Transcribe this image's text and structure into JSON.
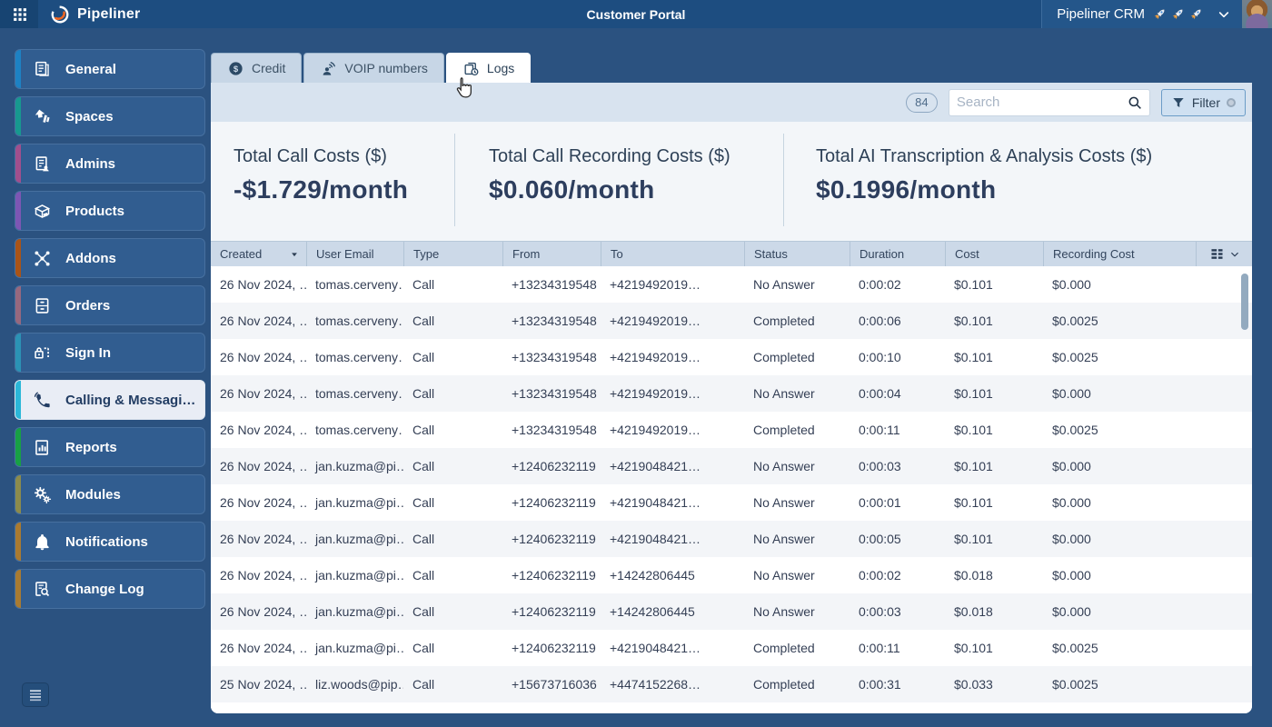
{
  "topbar": {
    "brand": "Pipeliner",
    "title": "Customer Portal",
    "account": "Pipeliner CRM"
  },
  "sidebar": {
    "items": [
      {
        "label": "General",
        "color": "#1d82c4",
        "icon": "general-icon",
        "active": false
      },
      {
        "label": "Spaces",
        "color": "#17998f",
        "icon": "spaces-icon",
        "active": false
      },
      {
        "label": "Admins",
        "color": "#a14f8d",
        "icon": "admins-icon",
        "active": false
      },
      {
        "label": "Products",
        "color": "#7d56b4",
        "icon": "products-icon",
        "active": false
      },
      {
        "label": "Addons",
        "color": "#aa5417",
        "icon": "addons-icon",
        "active": false
      },
      {
        "label": "Orders",
        "color": "#97687e",
        "icon": "orders-icon",
        "active": false
      },
      {
        "label": "Sign In",
        "color": "#2b93b5",
        "icon": "signin-icon",
        "active": false
      },
      {
        "label": "Calling & Messagi…",
        "color": "#2bb7d8",
        "icon": "calling-icon",
        "active": true
      },
      {
        "label": "Reports",
        "color": "#18a045",
        "icon": "reports-icon",
        "active": false
      },
      {
        "label": "Modules",
        "color": "#8c8b4c",
        "icon": "modules-icon",
        "active": false
      },
      {
        "label": "Notifications",
        "color": "#aa7a30",
        "icon": "notifications-icon",
        "active": false
      },
      {
        "label": "Change Log",
        "color": "#a97b31",
        "icon": "changelog-icon",
        "active": false
      }
    ]
  },
  "tabs": [
    {
      "label": "Credit",
      "icon": "credit-icon",
      "active": false
    },
    {
      "label": "VOIP numbers",
      "icon": "voip-icon",
      "active": false
    },
    {
      "label": "Logs",
      "icon": "logs-icon",
      "active": true
    }
  ],
  "toolbar": {
    "count": "84",
    "search_placeholder": "Search",
    "filter_label": "Filter"
  },
  "stats": [
    {
      "label": "Total Call Costs ($)",
      "value": "-$1.729/month"
    },
    {
      "label": "Total Call Recording Costs ($)",
      "value": "$0.060/month"
    },
    {
      "label": "Total AI Transcription & Analysis Costs ($)",
      "value": "$0.1996/month"
    }
  ],
  "table": {
    "columns": [
      "Created",
      "User Email",
      "Type",
      "From",
      "To",
      "Status",
      "Duration",
      "Cost",
      "Recording Cost"
    ],
    "sorted_column": "Created",
    "sort_direction": "desc",
    "rows": [
      [
        "26 Nov 2024, …",
        "tomas.cerveny…",
        "Call",
        "+13234319548",
        "+4219492019…",
        "No Answer",
        "0:00:02",
        "$0.101",
        "$0.000"
      ],
      [
        "26 Nov 2024, …",
        "tomas.cerveny…",
        "Call",
        "+13234319548",
        "+4219492019…",
        "Completed",
        "0:00:06",
        "$0.101",
        "$0.0025"
      ],
      [
        "26 Nov 2024, …",
        "tomas.cerveny…",
        "Call",
        "+13234319548",
        "+4219492019…",
        "Completed",
        "0:00:10",
        "$0.101",
        "$0.0025"
      ],
      [
        "26 Nov 2024, …",
        "tomas.cerveny…",
        "Call",
        "+13234319548",
        "+4219492019…",
        "No Answer",
        "0:00:04",
        "$0.101",
        "$0.000"
      ],
      [
        "26 Nov 2024, …",
        "tomas.cerveny…",
        "Call",
        "+13234319548",
        "+4219492019…",
        "Completed",
        "0:00:11",
        "$0.101",
        "$0.0025"
      ],
      [
        "26 Nov 2024, …",
        "jan.kuzma@pi…",
        "Call",
        "+12406232119",
        "+4219048421…",
        "No Answer",
        "0:00:03",
        "$0.101",
        "$0.000"
      ],
      [
        "26 Nov 2024, …",
        "jan.kuzma@pi…",
        "Call",
        "+12406232119",
        "+4219048421…",
        "No Answer",
        "0:00:01",
        "$0.101",
        "$0.000"
      ],
      [
        "26 Nov 2024, …",
        "jan.kuzma@pi…",
        "Call",
        "+12406232119",
        "+4219048421…",
        "No Answer",
        "0:00:05",
        "$0.101",
        "$0.000"
      ],
      [
        "26 Nov 2024, …",
        "jan.kuzma@pi…",
        "Call",
        "+12406232119",
        "+14242806445",
        "No Answer",
        "0:00:02",
        "$0.018",
        "$0.000"
      ],
      [
        "26 Nov 2024, …",
        "jan.kuzma@pi…",
        "Call",
        "+12406232119",
        "+14242806445",
        "No Answer",
        "0:00:03",
        "$0.018",
        "$0.000"
      ],
      [
        "26 Nov 2024, …",
        "jan.kuzma@pi…",
        "Call",
        "+12406232119",
        "+4219048421…",
        "Completed",
        "0:00:11",
        "$0.101",
        "$0.0025"
      ],
      [
        "25 Nov 2024, …",
        "liz.woods@pip…",
        "Call",
        "+15673716036",
        "+4474152268…",
        "Completed",
        "0:00:31",
        "$0.033",
        "$0.0025"
      ]
    ]
  }
}
